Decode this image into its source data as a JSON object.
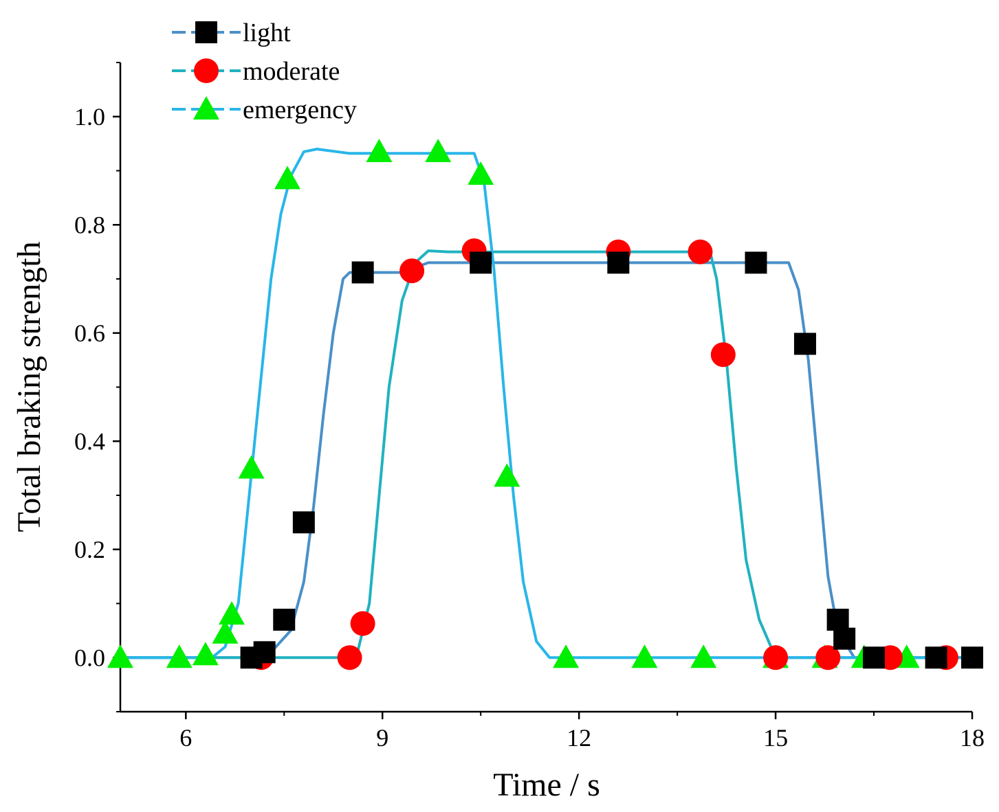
{
  "chart_data": {
    "type": "line",
    "xlabel": "Time / s",
    "ylabel": "Total braking strength",
    "xlim": [
      5,
      18
    ],
    "ylim": [
      -0.1,
      1.1
    ],
    "xticks": [
      6,
      9,
      12,
      15,
      18
    ],
    "xtick_labels": [
      "6",
      "9",
      "12",
      "15",
      "18"
    ],
    "yticks": [
      0.0,
      0.2,
      0.4,
      0.6,
      0.8,
      1.0
    ],
    "ytick_labels": [
      "0.0",
      "0.2",
      "0.4",
      "0.6",
      "0.8",
      "1.0"
    ],
    "legend_position": "top-left",
    "series": [
      {
        "name": "light",
        "line_color": "#4a90c8",
        "marker": "square",
        "marker_color": "#000000",
        "curve": [
          [
            5,
            0
          ],
          [
            7,
            0
          ],
          [
            7.3,
            0.01
          ],
          [
            7.6,
            0.05
          ],
          [
            7.8,
            0.14
          ],
          [
            7.95,
            0.28
          ],
          [
            8.1,
            0.45
          ],
          [
            8.25,
            0.6
          ],
          [
            8.4,
            0.7
          ],
          [
            8.5,
            0.712
          ],
          [
            9.3,
            0.712
          ],
          [
            9.7,
            0.73
          ],
          [
            15.2,
            0.73
          ],
          [
            15.35,
            0.68
          ],
          [
            15.5,
            0.55
          ],
          [
            15.65,
            0.35
          ],
          [
            15.8,
            0.15
          ],
          [
            15.95,
            0.05
          ],
          [
            16.2,
            0.0
          ],
          [
            18,
            0
          ]
        ],
        "markers": [
          [
            7.0,
            0
          ],
          [
            7.2,
            0.01
          ],
          [
            7.5,
            0.07
          ],
          [
            7.8,
            0.25
          ],
          [
            8.7,
            0.712
          ],
          [
            10.5,
            0.73
          ],
          [
            12.6,
            0.73
          ],
          [
            14.7,
            0.73
          ],
          [
            15.45,
            0.58
          ],
          [
            15.95,
            0.07
          ],
          [
            16.05,
            0.035
          ],
          [
            16.5,
            0
          ],
          [
            17.45,
            0
          ],
          [
            18.0,
            0
          ]
        ]
      },
      {
        "name": "moderate",
        "line_color": "#20b2c0",
        "marker": "circle",
        "marker_color": "#ff0000",
        "curve": [
          [
            5,
            0
          ],
          [
            8.6,
            0
          ],
          [
            8.8,
            0.1
          ],
          [
            8.95,
            0.3
          ],
          [
            9.1,
            0.5
          ],
          [
            9.3,
            0.66
          ],
          [
            9.5,
            0.73
          ],
          [
            9.7,
            0.752
          ],
          [
            10.0,
            0.75
          ],
          [
            14.0,
            0.75
          ],
          [
            14.1,
            0.7
          ],
          [
            14.25,
            0.55
          ],
          [
            14.4,
            0.35
          ],
          [
            14.55,
            0.18
          ],
          [
            14.75,
            0.07
          ],
          [
            15.0,
            0.0
          ],
          [
            18,
            0
          ]
        ],
        "markers": [
          [
            7.15,
            0
          ],
          [
            8.5,
            0
          ],
          [
            8.7,
            0.063
          ],
          [
            9.45,
            0.715
          ],
          [
            10.4,
            0.752
          ],
          [
            12.6,
            0.75
          ],
          [
            13.85,
            0.75
          ],
          [
            14.2,
            0.56
          ],
          [
            15.0,
            0
          ],
          [
            15.8,
            0
          ],
          [
            16.75,
            0
          ],
          [
            17.6,
            0
          ]
        ]
      },
      {
        "name": "emergency",
        "line_color": "#29b6e8",
        "marker": "triangle",
        "marker_color": "#00ee00",
        "curve": [
          [
            5,
            0
          ],
          [
            6.4,
            0
          ],
          [
            6.6,
            0.02
          ],
          [
            6.8,
            0.1
          ],
          [
            6.95,
            0.28
          ],
          [
            7.15,
            0.52
          ],
          [
            7.3,
            0.7
          ],
          [
            7.45,
            0.82
          ],
          [
            7.6,
            0.89
          ],
          [
            7.8,
            0.935
          ],
          [
            8.0,
            0.94
          ],
          [
            8.5,
            0.932
          ],
          [
            10.4,
            0.932
          ],
          [
            10.55,
            0.88
          ],
          [
            10.7,
            0.72
          ],
          [
            10.85,
            0.5
          ],
          [
            11.0,
            0.3
          ],
          [
            11.15,
            0.14
          ],
          [
            11.35,
            0.03
          ],
          [
            11.55,
            0.0
          ],
          [
            18,
            0
          ]
        ],
        "markers": [
          [
            5.0,
            0
          ],
          [
            5.9,
            0
          ],
          [
            6.3,
            0.005
          ],
          [
            6.6,
            0.045
          ],
          [
            6.7,
            0.08
          ],
          [
            7.0,
            0.35
          ],
          [
            7.55,
            0.885
          ],
          [
            8.95,
            0.935
          ],
          [
            9.85,
            0.935
          ],
          [
            10.5,
            0.893
          ],
          [
            10.9,
            0.335
          ],
          [
            11.8,
            0
          ],
          [
            13.0,
            0
          ],
          [
            13.9,
            0
          ],
          [
            15.0,
            0
          ],
          [
            15.75,
            0
          ],
          [
            16.35,
            0
          ],
          [
            17.0,
            0
          ]
        ]
      }
    ]
  }
}
